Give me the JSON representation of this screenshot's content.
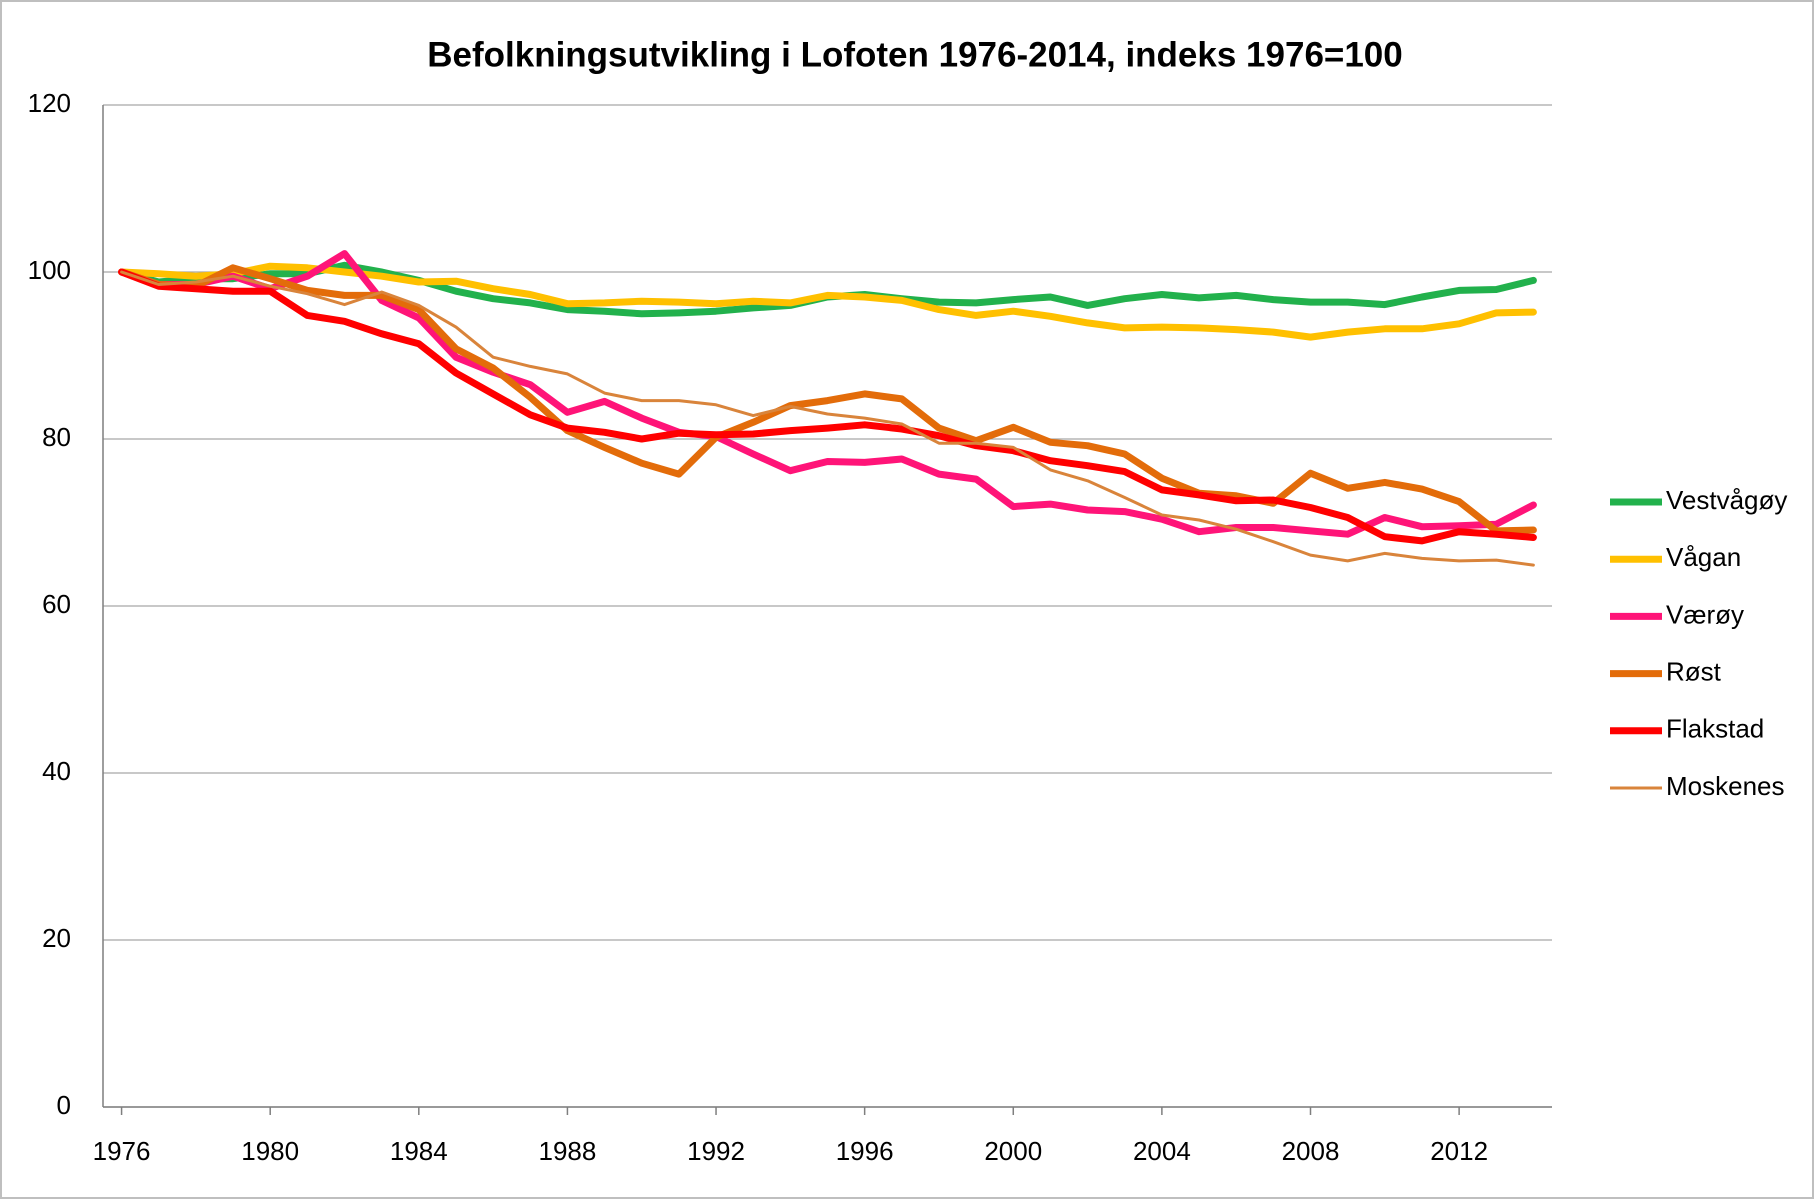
{
  "chart_data": {
    "type": "line",
    "title": "Befolkningsutvikling i Lofoten 1976-2014, indeks 1976=100",
    "x": [
      1976,
      1977,
      1978,
      1979,
      1980,
      1981,
      1982,
      1983,
      1984,
      1985,
      1986,
      1987,
      1988,
      1989,
      1990,
      1991,
      1992,
      1993,
      1994,
      1995,
      1996,
      1997,
      1998,
      1999,
      2000,
      2001,
      2002,
      2003,
      2004,
      2005,
      2006,
      2007,
      2008,
      2009,
      2010,
      2011,
      2012,
      2013,
      2014
    ],
    "xlim": [
      1975.5,
      2014.5
    ],
    "xticks": [
      1976,
      1980,
      1984,
      1988,
      1992,
      1996,
      2000,
      2004,
      2008,
      2012
    ],
    "ylim": [
      0,
      120
    ],
    "yticks": [
      0,
      20,
      40,
      60,
      80,
      100,
      120
    ],
    "grid": true,
    "legend": "right",
    "series": [
      {
        "name": "Vestvågøy",
        "color": "#22b14c",
        "linewidth": 7,
        "values": [
          100,
          98.8,
          99.2,
          99.2,
          99.8,
          99.8,
          100.8,
          100,
          99,
          97.7,
          96.8,
          96.3,
          95.5,
          95.3,
          95,
          95.1,
          95.3,
          95.7,
          96,
          97,
          97.3,
          96.8,
          96.4,
          96.3,
          96.7,
          97,
          96,
          96.8,
          97.3,
          96.9,
          97.2,
          96.7,
          96.4,
          96.4,
          96.1,
          97,
          97.8,
          97.9,
          99
        ]
      },
      {
        "name": "Vågan",
        "color": "#ffc000",
        "linewidth": 7,
        "values": [
          100,
          99.8,
          99.5,
          99.8,
          100.7,
          100.5,
          100,
          99.5,
          98.8,
          98.9,
          98,
          97.3,
          96.2,
          96.3,
          96.5,
          96.4,
          96.2,
          96.5,
          96.3,
          97.2,
          97,
          96.6,
          95.5,
          94.8,
          95.3,
          94.7,
          93.9,
          93.3,
          93.4,
          93.3,
          93.1,
          92.8,
          92.2,
          92.8,
          93.2,
          93.2,
          93.8,
          95.1,
          95.2
        ]
      },
      {
        "name": "Værøy",
        "color": "#ff1478",
        "linewidth": 7,
        "values": [
          100,
          98.5,
          98.5,
          99.5,
          98,
          99.5,
          102.2,
          96.6,
          94.5,
          89.8,
          88,
          86.5,
          83.2,
          84.5,
          82.5,
          80.8,
          80.3,
          78.2,
          76.2,
          77.3,
          77.2,
          77.6,
          75.8,
          75.2,
          71.9,
          72.2,
          71.5,
          71.3,
          70.4,
          68.9,
          69.4,
          69.4,
          69,
          68.6,
          70.6,
          69.5,
          69.6,
          69.8,
          72.1
        ]
      },
      {
        "name": "Røst",
        "color": "#e36c0a",
        "linewidth": 7,
        "values": [
          100,
          98.5,
          98.3,
          100.5,
          99.2,
          97.8,
          97.2,
          97.2,
          95.5,
          90.8,
          88.5,
          85,
          81,
          79,
          77.1,
          75.8,
          80.2,
          82,
          84,
          84.6,
          85.4,
          84.8,
          81.3,
          79.8,
          81.4,
          79.6,
          79.2,
          78.2,
          75.3,
          73.5,
          73.2,
          72.3,
          75.9,
          74.1,
          74.8,
          74,
          72.5,
          69,
          69.1
        ]
      },
      {
        "name": "Flakstad",
        "color": "#ff0000",
        "linewidth": 7,
        "values": [
          100,
          98.3,
          98,
          97.7,
          97.7,
          94.8,
          94.1,
          92.6,
          91.4,
          87.9,
          85.4,
          82.9,
          81.3,
          80.8,
          80,
          80.7,
          80.5,
          80.6,
          81,
          81.3,
          81.7,
          81.2,
          80.4,
          79.2,
          78.6,
          77.4,
          76.8,
          76.1,
          73.9,
          73.3,
          72.6,
          72.7,
          71.8,
          70.6,
          68.3,
          67.8,
          68.9,
          68.6,
          68.2
        ]
      },
      {
        "name": "Moskenes",
        "color": "#d9843b",
        "linewidth": 3,
        "values": [
          100,
          98.5,
          98.8,
          99.5,
          98.3,
          97.4,
          96.1,
          97.6,
          96,
          93.4,
          89.8,
          88.7,
          87.8,
          85.5,
          84.6,
          84.6,
          84.1,
          82.8,
          83.9,
          83,
          82.5,
          81.8,
          79.5,
          79.5,
          79,
          76.3,
          75,
          73,
          70.9,
          70.3,
          69.2,
          67.7,
          66.1,
          65.4,
          66.3,
          65.7,
          65.4,
          65.5,
          64.9
        ]
      }
    ]
  }
}
